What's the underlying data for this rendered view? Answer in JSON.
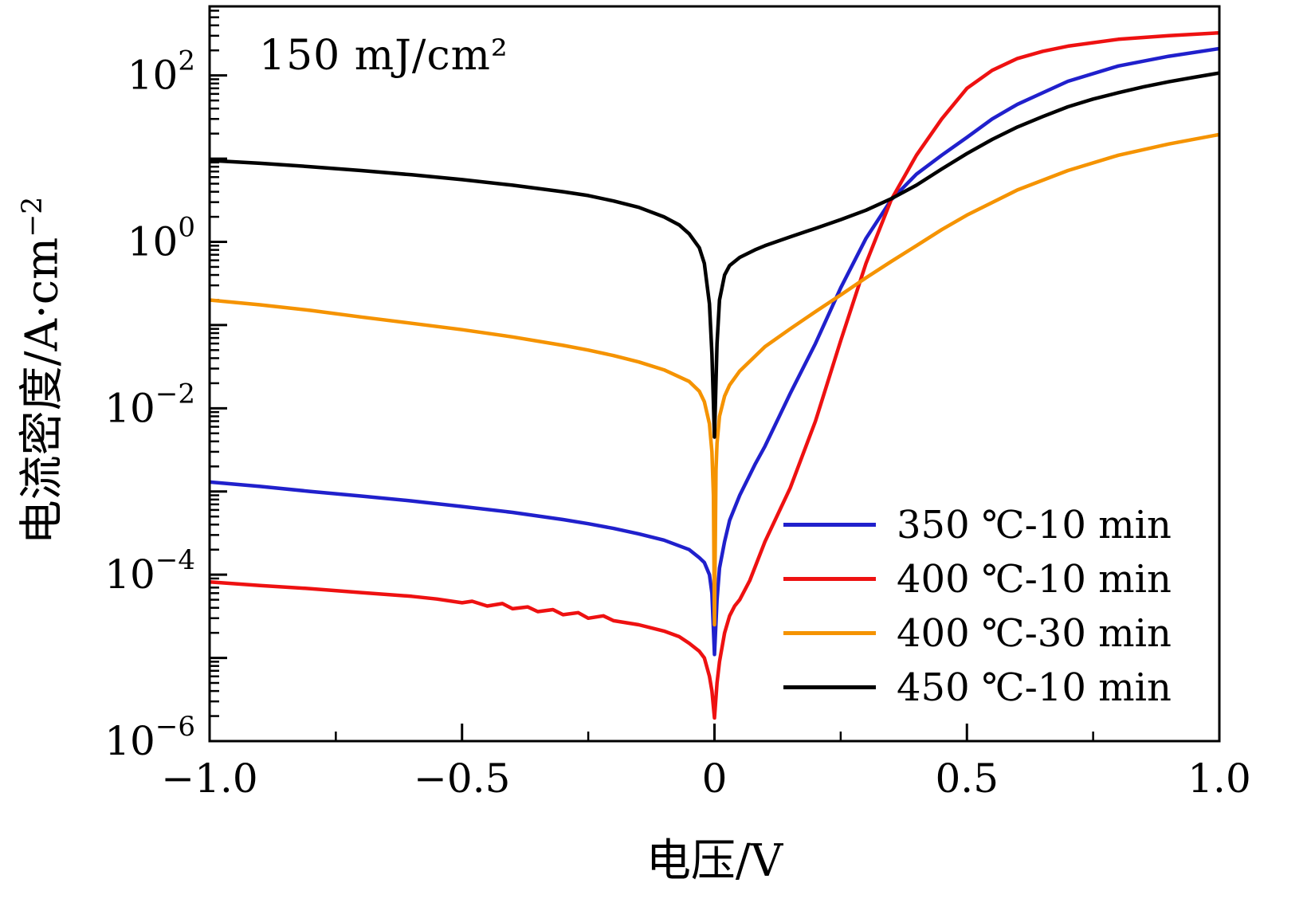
{
  "chart_data": {
    "type": "line",
    "title": "",
    "annotation": "150 mJ/cm²",
    "xlabel": "电压/V",
    "ylabel_base": "电流密度/A·cm",
    "ylabel_sup": "−2",
    "xlim": [
      -1.0,
      1.0
    ],
    "ylog_lim": [
      -6,
      2.83
    ],
    "x_ticks": [
      -1.0,
      -0.5,
      0,
      0.5,
      1.0
    ],
    "x_tick_labels": [
      "−1.0",
      "−0.5",
      "0",
      "0.5",
      "1.0"
    ],
    "x_minor_ticks": [
      -0.75,
      -0.25,
      0.25,
      0.75
    ],
    "y_labeled_decades": [
      -6,
      -4,
      -2,
      0,
      2
    ],
    "grid": false,
    "legend_position": "lower-right",
    "yscale": "log",
    "series": [
      {
        "name": "350 ℃-10 min",
        "color": "#2020cc",
        "points": [
          [
            -1.0,
            0.0013
          ],
          [
            -0.9,
            0.00115
          ],
          [
            -0.8,
            0.001
          ],
          [
            -0.7,
            0.00088
          ],
          [
            -0.6,
            0.00077
          ],
          [
            -0.5,
            0.00066
          ],
          [
            -0.4,
            0.00056
          ],
          [
            -0.3,
            0.00046
          ],
          [
            -0.25,
            0.00041
          ],
          [
            -0.2,
            0.00036
          ],
          [
            -0.15,
            0.00031
          ],
          [
            -0.1,
            0.00026
          ],
          [
            -0.05,
            0.0002
          ],
          [
            -0.03,
            0.00016
          ],
          [
            -0.02,
            0.00014
          ],
          [
            -0.01,
            0.0001
          ],
          [
            -0.005,
            6e-05
          ],
          [
            0,
            1.1e-05
          ],
          [
            0.005,
            5e-05
          ],
          [
            0.01,
            0.00012
          ],
          [
            0.02,
            0.00025
          ],
          [
            0.03,
            0.00045
          ],
          [
            0.05,
            0.0009
          ],
          [
            0.08,
            0.0021
          ],
          [
            0.1,
            0.0035
          ],
          [
            0.15,
            0.015
          ],
          [
            0.2,
            0.06
          ],
          [
            0.25,
            0.28
          ],
          [
            0.3,
            1.1
          ],
          [
            0.35,
            3.2
          ],
          [
            0.4,
            6.5
          ],
          [
            0.45,
            11
          ],
          [
            0.5,
            18
          ],
          [
            0.55,
            30
          ],
          [
            0.6,
            45
          ],
          [
            0.7,
            85
          ],
          [
            0.8,
            130
          ],
          [
            0.9,
            170
          ],
          [
            1.0,
            210
          ]
        ]
      },
      {
        "name": "400 ℃-10 min",
        "color": "#ee1111",
        "points": [
          [
            -1.0,
            8.2e-05
          ],
          [
            -0.9,
            7.4e-05
          ],
          [
            -0.8,
            6.8e-05
          ],
          [
            -0.7,
            6.1e-05
          ],
          [
            -0.6,
            5.5e-05
          ],
          [
            -0.55,
            5.1e-05
          ],
          [
            -0.5,
            4.6e-05
          ],
          [
            -0.48,
            4.8e-05
          ],
          [
            -0.45,
            4.2e-05
          ],
          [
            -0.42,
            4.5e-05
          ],
          [
            -0.4,
            3.9e-05
          ],
          [
            -0.37,
            4.1e-05
          ],
          [
            -0.35,
            3.6e-05
          ],
          [
            -0.32,
            3.8e-05
          ],
          [
            -0.3,
            3.3e-05
          ],
          [
            -0.27,
            3.5e-05
          ],
          [
            -0.25,
            3e-05
          ],
          [
            -0.22,
            3.2e-05
          ],
          [
            -0.2,
            2.8e-05
          ],
          [
            -0.15,
            2.5e-05
          ],
          [
            -0.1,
            2.1e-05
          ],
          [
            -0.07,
            1.8e-05
          ],
          [
            -0.05,
            1.5e-05
          ],
          [
            -0.03,
            1.2e-05
          ],
          [
            -0.02,
            1e-05
          ],
          [
            -0.01,
            6e-06
          ],
          [
            -0.005,
            4e-06
          ],
          [
            0,
            1.9e-06
          ],
          [
            0.005,
            5e-06
          ],
          [
            0.01,
            9e-06
          ],
          [
            0.02,
            2e-05
          ],
          [
            0.03,
            3.2e-05
          ],
          [
            0.04,
            4.2e-05
          ],
          [
            0.05,
            5e-05
          ],
          [
            0.07,
            8.5e-05
          ],
          [
            0.1,
            0.00025
          ],
          [
            0.15,
            0.0011
          ],
          [
            0.2,
            0.007
          ],
          [
            0.25,
            0.065
          ],
          [
            0.3,
            0.55
          ],
          [
            0.35,
            3.2
          ],
          [
            0.4,
            11
          ],
          [
            0.45,
            30
          ],
          [
            0.5,
            70
          ],
          [
            0.55,
            115
          ],
          [
            0.6,
            160
          ],
          [
            0.65,
            195
          ],
          [
            0.7,
            225
          ],
          [
            0.8,
            272
          ],
          [
            0.9,
            300
          ],
          [
            1.0,
            325
          ]
        ]
      },
      {
        "name": "400 ℃-30 min",
        "color": "#f59300",
        "points": [
          [
            -1.0,
            0.2
          ],
          [
            -0.9,
            0.175
          ],
          [
            -0.8,
            0.15
          ],
          [
            -0.7,
            0.125
          ],
          [
            -0.6,
            0.105
          ],
          [
            -0.5,
            0.088
          ],
          [
            -0.4,
            0.072
          ],
          [
            -0.3,
            0.057
          ],
          [
            -0.25,
            0.05
          ],
          [
            -0.2,
            0.043
          ],
          [
            -0.15,
            0.036
          ],
          [
            -0.1,
            0.029
          ],
          [
            -0.05,
            0.021
          ],
          [
            -0.03,
            0.016
          ],
          [
            -0.02,
            0.012
          ],
          [
            -0.01,
            0.0065
          ],
          [
            -0.005,
            0.003
          ],
          [
            -0.002,
            0.0009
          ],
          [
            0,
            2.5e-05
          ],
          [
            0.003,
            0.0018
          ],
          [
            0.005,
            0.0038
          ],
          [
            0.01,
            0.008
          ],
          [
            0.02,
            0.014
          ],
          [
            0.03,
            0.019
          ],
          [
            0.05,
            0.028
          ],
          [
            0.08,
            0.042
          ],
          [
            0.1,
            0.055
          ],
          [
            0.15,
            0.09
          ],
          [
            0.2,
            0.145
          ],
          [
            0.25,
            0.23
          ],
          [
            0.3,
            0.37
          ],
          [
            0.35,
            0.58
          ],
          [
            0.4,
            0.9
          ],
          [
            0.45,
            1.4
          ],
          [
            0.5,
            2.1
          ],
          [
            0.6,
            4.2
          ],
          [
            0.7,
            7.2
          ],
          [
            0.8,
            11
          ],
          [
            0.9,
            15
          ],
          [
            1.0,
            19.5
          ]
        ]
      },
      {
        "name": "450 ℃-10 min",
        "color": "#000000",
        "points": [
          [
            -1.0,
            9.5
          ],
          [
            -0.9,
            8.8
          ],
          [
            -0.8,
            8.0
          ],
          [
            -0.7,
            7.2
          ],
          [
            -0.6,
            6.4
          ],
          [
            -0.5,
            5.6
          ],
          [
            -0.4,
            4.8
          ],
          [
            -0.3,
            4.0
          ],
          [
            -0.25,
            3.6
          ],
          [
            -0.2,
            3.1
          ],
          [
            -0.15,
            2.6
          ],
          [
            -0.1,
            2.0
          ],
          [
            -0.07,
            1.6
          ],
          [
            -0.05,
            1.25
          ],
          [
            -0.03,
            0.85
          ],
          [
            -0.02,
            0.55
          ],
          [
            -0.01,
            0.18
          ],
          [
            -0.005,
            0.045
          ],
          [
            0,
            0.0045
          ],
          [
            0.005,
            0.06
          ],
          [
            0.01,
            0.2
          ],
          [
            0.02,
            0.4
          ],
          [
            0.03,
            0.52
          ],
          [
            0.05,
            0.65
          ],
          [
            0.08,
            0.8
          ],
          [
            0.1,
            0.9
          ],
          [
            0.15,
            1.15
          ],
          [
            0.2,
            1.45
          ],
          [
            0.25,
            1.85
          ],
          [
            0.3,
            2.4
          ],
          [
            0.35,
            3.3
          ],
          [
            0.4,
            4.8
          ],
          [
            0.45,
            7.5
          ],
          [
            0.5,
            11.5
          ],
          [
            0.55,
            17
          ],
          [
            0.6,
            24
          ],
          [
            0.65,
            32
          ],
          [
            0.7,
            42
          ],
          [
            0.75,
            52
          ],
          [
            0.8,
            62
          ],
          [
            0.85,
            73
          ],
          [
            0.9,
            84
          ],
          [
            0.95,
            95
          ],
          [
            1.0,
            107
          ]
        ]
      }
    ]
  }
}
